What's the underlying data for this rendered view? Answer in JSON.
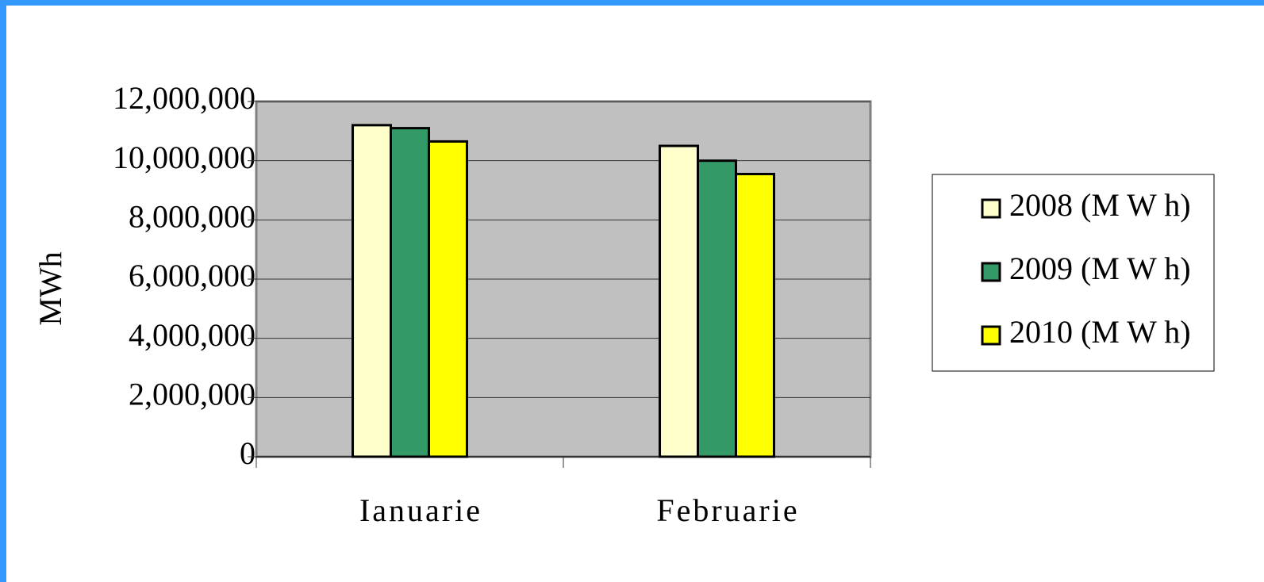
{
  "chart_data": {
    "type": "bar",
    "y_label": "MWh",
    "categories": [
      "Ianuarie",
      "Februarie"
    ],
    "series": [
      {
        "name": "2008 (M W h)",
        "color": "#ffffcc",
        "values": [
          11200000,
          10500000
        ]
      },
      {
        "name": "2009 (M W h)",
        "color": "#339966",
        "values": [
          11100000,
          10000000
        ]
      },
      {
        "name": "2010 (M W h)",
        "color": "#ffff00",
        "values": [
          10650000,
          9550000
        ]
      }
    ],
    "ylim": [
      0,
      12000000
    ],
    "yticks": [
      0,
      {
        "value": 2000000,
        "label": "2,000,000"
      },
      {
        "value": 4000000,
        "label": "4,000,000"
      },
      {
        "value": 6000000,
        "label": "6,000,000"
      },
      {
        "value": 8000000,
        "label": "8,000,000"
      },
      {
        "value": 10000000,
        "label": "10,000,000"
      },
      {
        "value": 12000000,
        "label": "12,000,000"
      }
    ],
    "grid": true,
    "legend": "right"
  }
}
